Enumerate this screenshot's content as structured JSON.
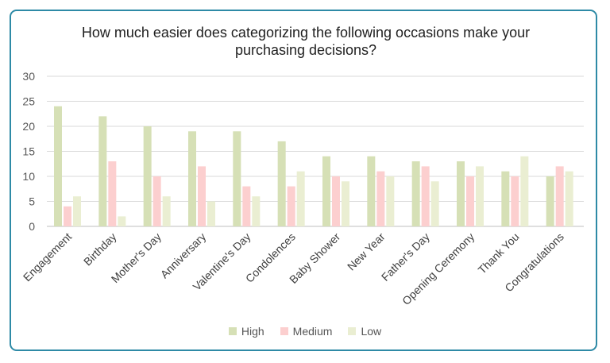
{
  "chart_data": {
    "type": "bar",
    "title": "How much easier does categorizing the following occasions make your purchasing decisions?",
    "categories": [
      "Engagement",
      "Birthday",
      "Mother's Day",
      "Anniversary",
      "Valentine's Day",
      "Condolences",
      "Baby Shower",
      "New Year",
      "Father's Day",
      "Opening Ceremony",
      "Thank You",
      "Congratulations"
    ],
    "series": [
      {
        "name": "High",
        "color": "#d6e0b6",
        "values": [
          24,
          22,
          20,
          19,
          19,
          17,
          14,
          14,
          13,
          13,
          11,
          10
        ]
      },
      {
        "name": "Medium",
        "color": "#fccfcf",
        "values": [
          4,
          13,
          10,
          12,
          8,
          8,
          10,
          11,
          12,
          10,
          10,
          12
        ]
      },
      {
        "name": "Low",
        "color": "#eaeed2",
        "values": [
          6,
          2,
          6,
          5,
          6,
          11,
          9,
          10,
          9,
          12,
          14,
          11
        ]
      }
    ],
    "yticks": [
      0,
      5,
      10,
      15,
      20,
      25,
      30
    ],
    "ylim": [
      0,
      30
    ],
    "grid": true,
    "legend_position": "bottom"
  }
}
